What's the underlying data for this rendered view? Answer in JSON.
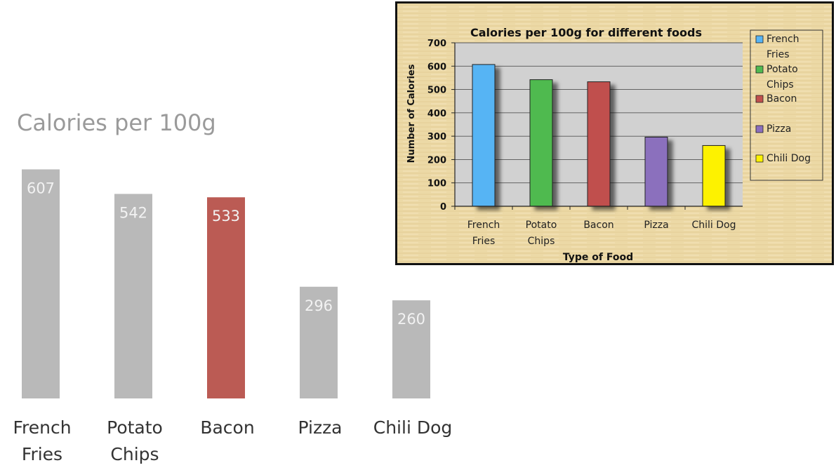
{
  "colors": {
    "left_default": "#b9b9b9",
    "left_highlight": "#bb5b54",
    "left_value_text": "#f2f2f2",
    "left_title": "#9a9a9a",
    "left_label": "#333333",
    "right_series": [
      "#57b4f4",
      "#50ba50",
      "#c0504d",
      "#8b6fbd",
      "#fdf200"
    ],
    "parchment": "#ecd9a6",
    "plot_bg": "#d1d1d1"
  },
  "chart_data": [
    {
      "type": "bar",
      "title": "Calories per 100g",
      "categories": [
        "French Fries",
        "Potato Chips",
        "Bacon",
        "Pizza",
        "Chili Dog"
      ],
      "category_lines": [
        [
          "French",
          "Fries"
        ],
        [
          "Potato",
          "Chips"
        ],
        [
          "Bacon"
        ],
        [
          "Pizza"
        ],
        [
          "Chili Dog"
        ]
      ],
      "values": [
        607,
        542,
        533,
        296,
        260
      ],
      "highlight": "Bacon",
      "xlabel": "",
      "ylabel": "",
      "grid": false
    },
    {
      "type": "bar",
      "title": "Calories per 100g for different foods",
      "categories": [
        "French Fries",
        "Potato Chips",
        "Bacon",
        "Pizza",
        "Chili Dog"
      ],
      "category_lines": [
        [
          "French",
          "Fries"
        ],
        [
          "Potato",
          "Chips"
        ],
        [
          "Bacon"
        ],
        [
          "Pizza"
        ],
        [
          "Chili Dog"
        ]
      ],
      "values": [
        607,
        542,
        533,
        296,
        260
      ],
      "xlabel": "Type of Food",
      "ylabel": "Number of Calories",
      "ylim": [
        0,
        700
      ],
      "yticks": [
        "0",
        "100",
        "200",
        "300",
        "400",
        "500",
        "600",
        "700"
      ],
      "grid": true,
      "legend_position": "right",
      "legend": [
        [
          "French",
          "Fries"
        ],
        [
          "Potato",
          "Chips"
        ],
        [
          "Bacon"
        ],
        [
          "Pizza"
        ],
        [
          "Chili Dog"
        ]
      ]
    }
  ]
}
